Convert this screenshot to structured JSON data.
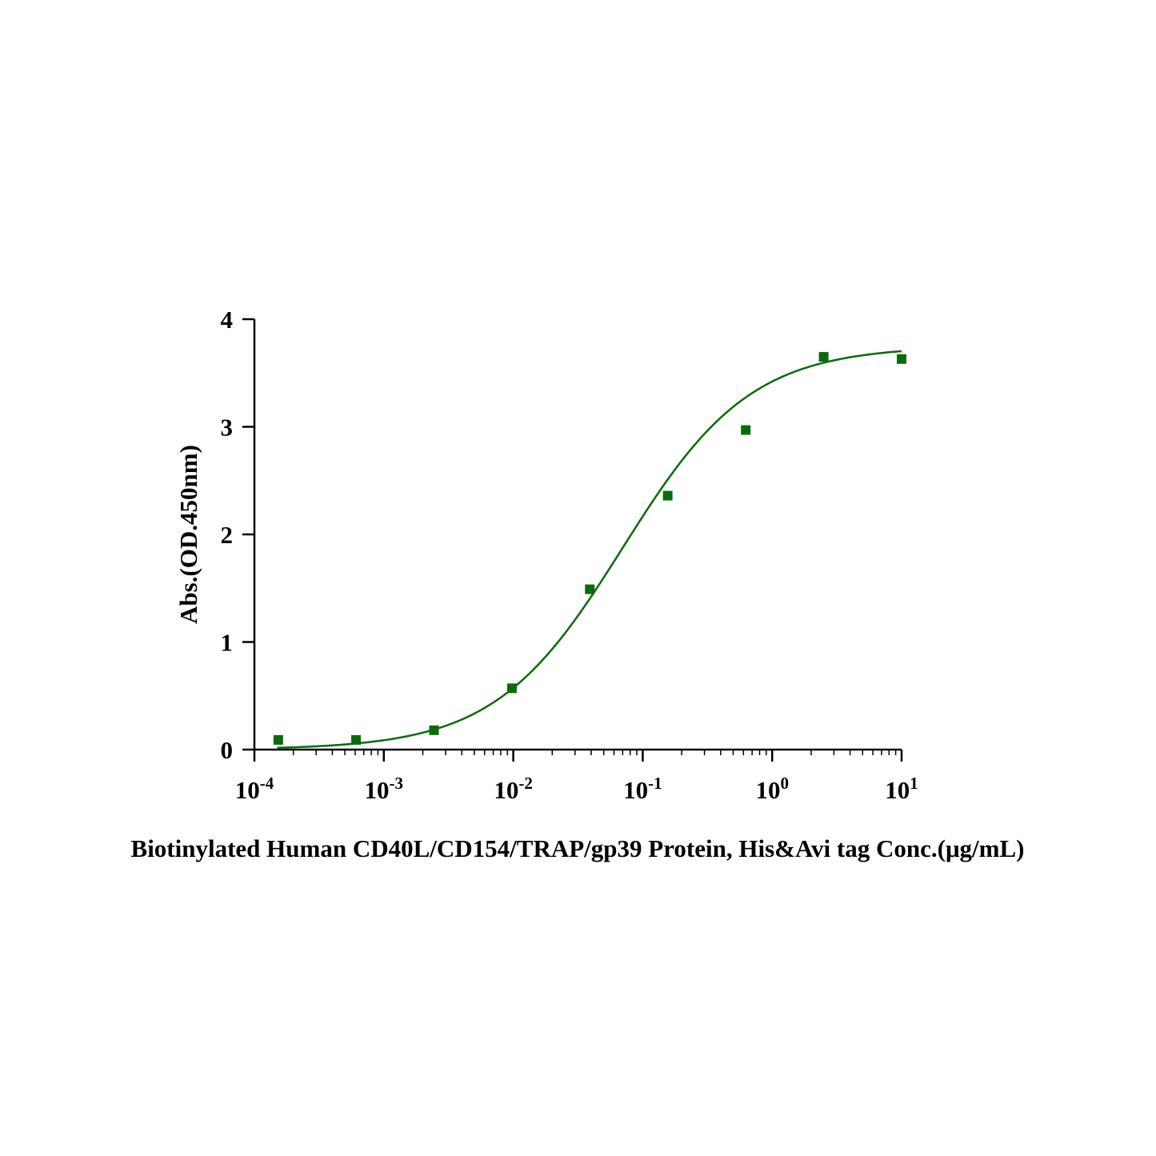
{
  "chart_data": {
    "type": "scatter",
    "xscale": "log",
    "xlim": [
      0.0001,
      10
    ],
    "ylim": [
      0,
      4
    ],
    "xlabel": "Biotinylated Human CD40L/CD154/TRAP/gp39 Protein, His&Avi tag Conc.(μg/mL)",
    "ylabel": "Abs.(OD.450nm)",
    "x_ticks": [
      {
        "value": 0.0001,
        "base": "10",
        "exp": "-4"
      },
      {
        "value": 0.001,
        "base": "10",
        "exp": "-3"
      },
      {
        "value": 0.01,
        "base": "10",
        "exp": "-2"
      },
      {
        "value": 0.1,
        "base": "10",
        "exp": "-1"
      },
      {
        "value": 1,
        "base": "10",
        "exp": "0"
      },
      {
        "value": 10,
        "base": "10",
        "exp": "1"
      }
    ],
    "y_ticks": [
      "0",
      "1",
      "2",
      "3",
      "4"
    ],
    "grid": false,
    "legend": "none",
    "color": "#0a6b0a",
    "series": [
      {
        "points": [
          {
            "x": 0.000153,
            "y": 0.09
          },
          {
            "x": 0.00061,
            "y": 0.09
          },
          {
            "x": 0.00244,
            "y": 0.18
          },
          {
            "x": 0.00977,
            "y": 0.57
          },
          {
            "x": 0.039,
            "y": 1.49
          },
          {
            "x": 0.156,
            "y": 2.36
          },
          {
            "x": 0.625,
            "y": 2.97
          },
          {
            "x": 2.5,
            "y": 3.65
          },
          {
            "x": 10,
            "y": 3.63
          }
        ],
        "fit": {
          "model": "4PL",
          "bottom": 0.0,
          "top": 3.75,
          "ec50": 0.07,
          "hill": 0.88,
          "x_range": [
            0.00015,
            10
          ]
        }
      }
    ]
  }
}
